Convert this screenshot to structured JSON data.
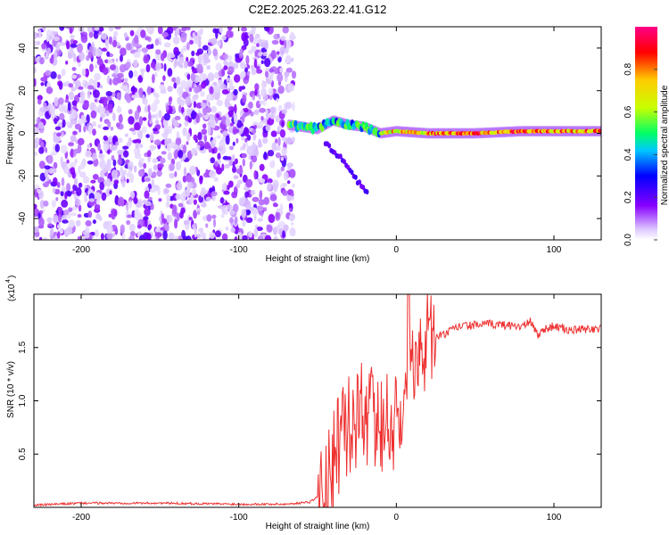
{
  "figure": {
    "title": "C2E2.2025.263.22.41.G12"
  },
  "chart_data": [
    {
      "type": "heatmap",
      "xlabel": "Height of straight line (km)",
      "ylabel": "Frequency (Hz)",
      "xlim": [
        -230,
        130
      ],
      "ylim": [
        -50,
        50
      ],
      "xticks": [
        -200,
        -100,
        0,
        100
      ],
      "yticks": [
        -40,
        -20,
        0,
        20,
        40
      ],
      "colorbar": {
        "label": "Normalized spectral amplitude",
        "range": [
          0,
          1
        ],
        "ticks": [
          0.0,
          0.2,
          0.4,
          0.6,
          0.8
        ],
        "tick_labels": [
          "0.0",
          "0.2",
          "0.4",
          "0.6",
          "0.8"
        ],
        "colors": [
          "#ffffff",
          "#dcc8ff",
          "#8800ff",
          "#0000ff",
          "#00c8ff",
          "#00ff66",
          "#c8ff00",
          "#ffcc00",
          "#ff0000",
          "#ff0088"
        ]
      },
      "features": [
        {
          "name": "noise",
          "x_range": [
            -230,
            -65
          ],
          "amplitude_range": [
            0.05,
            0.25
          ]
        },
        {
          "name": "signal band",
          "x": [
            -68,
            -50,
            -40,
            -30,
            -20,
            -10,
            0,
            20,
            50,
            80,
            100,
            130
          ],
          "y": [
            4,
            2,
            6,
            4,
            3,
            0,
            1,
            0,
            0,
            1,
            1,
            1
          ]
        },
        {
          "name": "descending trace",
          "x": [
            -45,
            -35,
            -25,
            -18
          ],
          "y": [
            -5,
            -12,
            -22,
            -28
          ]
        }
      ]
    },
    {
      "type": "line",
      "xlabel": "Height of straight line (km)",
      "ylabel": "SNR (10 * v/v)",
      "y_multiplier_label": "(x10",
      "y_multiplier_exp": "4",
      "xlim": [
        -230,
        130
      ],
      "ylim": [
        0,
        2.0
      ],
      "xticks": [
        -200,
        -100,
        0,
        100
      ],
      "yticks": [
        0.5,
        1.0,
        1.5
      ],
      "ytick_labels": [
        "0.5",
        "1.0",
        "1.5"
      ],
      "color": "#ee3030",
      "x": [
        -230,
        -200,
        -150,
        -100,
        -70,
        -55,
        -45,
        -38,
        -30,
        -20,
        -10,
        0,
        5,
        8,
        10,
        15,
        20,
        25,
        30,
        40,
        60,
        80,
        85,
        90,
        95,
        100,
        110,
        130
      ],
      "y": [
        0.02,
        0.04,
        0.04,
        0.03,
        0.03,
        0.05,
        0.15,
        0.5,
        0.8,
        0.9,
        0.8,
        0.85,
        0.9,
        1.9,
        1.2,
        1.4,
        1.55,
        1.6,
        1.62,
        1.7,
        1.72,
        1.7,
        1.74,
        1.62,
        1.68,
        1.7,
        1.66,
        1.68
      ]
    }
  ]
}
